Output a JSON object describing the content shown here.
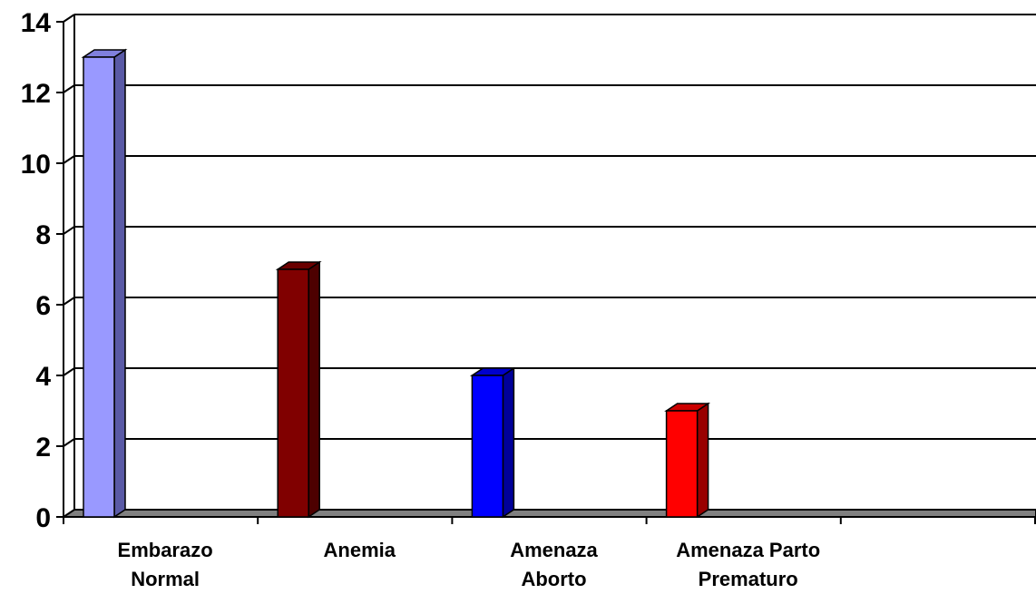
{
  "chart_data": {
    "type": "bar",
    "style": "3d-column",
    "categories": [
      [
        "Embarazo",
        "Normal"
      ],
      [
        "Anemia"
      ],
      [
        "Amenaza",
        "Aborto"
      ],
      [
        "Amenaza Parto",
        "Prematuro"
      ],
      [
        ""
      ]
    ],
    "values": [
      13,
      7,
      4,
      3,
      null
    ],
    "colors": [
      {
        "front": "#9999ff",
        "side": "#5a5aa6",
        "top": "#8080dd"
      },
      {
        "front": "#800000",
        "side": "#4d0000",
        "top": "#6a0000"
      },
      {
        "front": "#0000ff",
        "side": "#000099",
        "top": "#0000cc"
      },
      {
        "front": "#ff0000",
        "side": "#990000",
        "top": "#cc0000"
      }
    ],
    "y_ticks": [
      "0",
      "2",
      "4",
      "6",
      "8",
      "10",
      "12",
      "14"
    ],
    "ylim": [
      0,
      14
    ],
    "grid": true,
    "floor_color": "#808080",
    "legend": "none"
  }
}
